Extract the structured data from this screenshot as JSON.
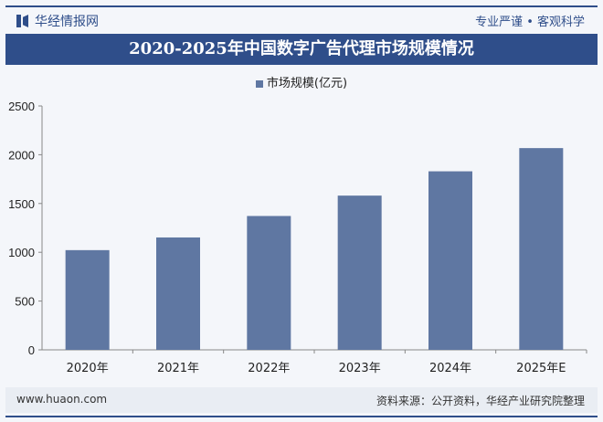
{
  "header": {
    "brand": "华经情报网",
    "slogan": "专业严谨 • 客观科学",
    "title": "2020-2025年中国数字广告代理市场规模情况"
  },
  "footer": {
    "site": "www.huaon.com",
    "source": "资料来源：公开资料，华经产业研究院整理"
  },
  "colors": {
    "bar": "#5f77a2",
    "title_bg": "#2f4e8a"
  },
  "chart_data": {
    "type": "bar",
    "title": "2020-2025年中国数字广告代理市场规模情况",
    "categories": [
      "2020年",
      "2021年",
      "2022年",
      "2023年",
      "2024年",
      "2025年E"
    ],
    "series": [
      {
        "name": "市场规模(亿元)",
        "values": [
          1022,
          1152,
          1372,
          1581,
          1830,
          2068
        ]
      }
    ],
    "ylim": [
      0,
      2500
    ],
    "yticks": [
      0,
      500,
      1000,
      1500,
      2000,
      2500
    ],
    "grid": false,
    "legend": "top-center"
  }
}
